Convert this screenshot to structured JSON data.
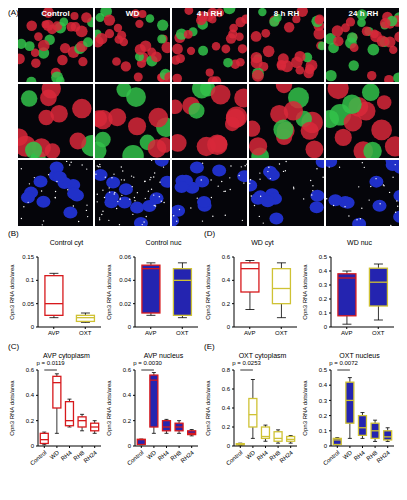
{
  "image_panel": {
    "label": "(A)",
    "columns": [
      "Control",
      "WD",
      "4 h RH",
      "8 h RH",
      "24 h RH"
    ]
  },
  "chart_data": [
    {
      "type": "box",
      "panel_label": "(B)",
      "title": "Control cyt",
      "y_label": "Opn3 RNA dots/area",
      "categories": [
        "AVP",
        "OXT"
      ],
      "boxes": [
        {
          "min": 0.02,
          "q1": 0.025,
          "median": 0.05,
          "q3": 0.11,
          "max": 0.115
        },
        {
          "min": 0.01,
          "q1": 0.012,
          "median": 0.02,
          "q3": 0.025,
          "max": 0.03
        }
      ],
      "colors": [
        "#d7191c",
        "#cfc234"
      ],
      "color": "#ffffff",
      "ylim": [
        0,
        0.15
      ],
      "yticks": [
        0,
        0.05,
        0.1,
        0.15
      ]
    },
    {
      "type": "box",
      "title": "Control nuc",
      "y_label": "Opn3 RNA dots/area",
      "categories": [
        "AVP",
        "OXT"
      ],
      "boxes": [
        {
          "min": 0.01,
          "q1": 0.012,
          "median": 0.05,
          "q3": 0.053,
          "max": 0.055
        },
        {
          "min": 0.008,
          "q1": 0.01,
          "median": 0.04,
          "q3": 0.05,
          "max": 0.055
        }
      ],
      "colors": [
        "#d7191c",
        "#cfc234"
      ],
      "color": "#2424b0",
      "ylim": [
        0,
        0.06
      ],
      "yticks": [
        0,
        0.02,
        0.04,
        0.06
      ]
    },
    {
      "type": "box",
      "panel_label": "(D)",
      "title": "WD cyt",
      "y_label": "Opn3 RNA dots/area",
      "categories": [
        "AVP",
        "OXT"
      ],
      "boxes": [
        {
          "min": 0.15,
          "q1": 0.3,
          "median": 0.5,
          "q3": 0.55,
          "max": 0.57
        },
        {
          "min": 0.08,
          "q1": 0.2,
          "median": 0.33,
          "q3": 0.5,
          "max": 0.55
        }
      ],
      "colors": [
        "#d7191c",
        "#cfc234"
      ],
      "color": "#ffffff",
      "ylim": [
        0,
        0.6
      ],
      "yticks": [
        0,
        0.2,
        0.4,
        0.6
      ]
    },
    {
      "type": "box",
      "title": "WD nuc",
      "y_label": "Opn3 RNA dots/area",
      "categories": [
        "AVP",
        "OXT"
      ],
      "boxes": [
        {
          "min": 0.02,
          "q1": 0.08,
          "median": 0.35,
          "q3": 0.38,
          "max": 0.4
        },
        {
          "min": 0.05,
          "q1": 0.15,
          "median": 0.32,
          "q3": 0.42,
          "max": 0.45
        }
      ],
      "colors": [
        "#d7191c",
        "#cfc234"
      ],
      "color": "#2424b0",
      "ylim": [
        0,
        0.5
      ],
      "yticks": [
        0,
        0.1,
        0.2,
        0.3,
        0.4,
        0.5
      ]
    },
    {
      "type": "box",
      "panel_label": "(C)",
      "title": "AVP cytoplasm",
      "y_label": "Opn3 RNA dots/area",
      "categories": [
        "Control",
        "WD",
        "RH4",
        "RH8",
        "RH24"
      ],
      "boxes": [
        {
          "min": 0.01,
          "q1": 0.02,
          "median": 0.05,
          "q3": 0.1,
          "max": 0.11
        },
        {
          "min": 0.1,
          "q1": 0.3,
          "median": 0.5,
          "q3": 0.55,
          "max": 0.57
        },
        {
          "min": 0.15,
          "q1": 0.16,
          "median": 0.2,
          "q3": 0.35,
          "max": 0.37
        },
        {
          "min": 0.12,
          "q1": 0.15,
          "median": 0.2,
          "q3": 0.23,
          "max": 0.25
        },
        {
          "min": 0.1,
          "q1": 0.12,
          "median": 0.15,
          "q3": 0.18,
          "max": 0.2
        }
      ],
      "colors": [
        "#d7191c",
        "#d7191c",
        "#d7191c",
        "#d7191c",
        "#d7191c"
      ],
      "color": "#ffffff",
      "ylim": [
        0,
        0.6
      ],
      "yticks": [
        0,
        0.2,
        0.4,
        0.6
      ],
      "annotations": [
        {
          "text": "p = 0.0119",
          "from": 0,
          "to": 1
        }
      ]
    },
    {
      "type": "box",
      "title": "AVP nucleus",
      "y_label": "Opn3 RNA dots/area",
      "categories": [
        "Control",
        "WD",
        "RH4",
        "RH8",
        "RH24"
      ],
      "boxes": [
        {
          "min": 0.01,
          "q1": 0.012,
          "median": 0.05,
          "q3": 0.053,
          "max": 0.055
        },
        {
          "min": 0.1,
          "q1": 0.15,
          "median": 0.52,
          "q3": 0.56,
          "max": 0.58
        },
        {
          "min": 0.1,
          "q1": 0.12,
          "median": 0.15,
          "q3": 0.2,
          "max": 0.21
        },
        {
          "min": 0.1,
          "q1": 0.12,
          "median": 0.15,
          "q3": 0.18,
          "max": 0.2
        },
        {
          "min": 0.08,
          "q1": 0.09,
          "median": 0.1,
          "q3": 0.12,
          "max": 0.13
        }
      ],
      "colors": [
        "#d7191c",
        "#d7191c",
        "#d7191c",
        "#d7191c",
        "#d7191c"
      ],
      "color": "#2424b0",
      "ylim": [
        0,
        0.6
      ],
      "yticks": [
        0,
        0.2,
        0.4,
        0.6
      ],
      "annotations": [
        {
          "text": "p = 0.0030",
          "from": 0,
          "to": 1
        }
      ]
    },
    {
      "type": "box",
      "panel_label": "(E)",
      "title": "OXT cytoplasm",
      "y_label": "Opn3 RNA dots/area",
      "categories": [
        "Control",
        "WD",
        "RH4",
        "RH8",
        "RH24"
      ],
      "boxes": [
        {
          "min": 0.01,
          "q1": 0.012,
          "median": 0.02,
          "q3": 0.025,
          "max": 0.03
        },
        {
          "min": 0.08,
          "q1": 0.2,
          "median": 0.33,
          "q3": 0.5,
          "max": 0.7
        },
        {
          "min": 0.05,
          "q1": 0.08,
          "median": 0.1,
          "q3": 0.2,
          "max": 0.22
        },
        {
          "min": 0.03,
          "q1": 0.05,
          "median": 0.08,
          "q3": 0.15,
          "max": 0.17
        },
        {
          "min": 0.03,
          "q1": 0.05,
          "median": 0.07,
          "q3": 0.1,
          "max": 0.11
        }
      ],
      "colors": [
        "#cfc234",
        "#cfc234",
        "#cfc234",
        "#cfc234",
        "#cfc234"
      ],
      "color": "#ffffff",
      "ylim": [
        0,
        0.8
      ],
      "yticks": [
        0,
        0.2,
        0.4,
        0.6,
        0.8
      ],
      "annotations": [
        {
          "text": "p = 0.0253",
          "from": 0,
          "to": 1
        }
      ]
    },
    {
      "type": "box",
      "title": "OXT nucleus",
      "y_label": "Opn3 RNA dots/area",
      "categories": [
        "Control",
        "WD",
        "RH4",
        "RH8",
        "RH24"
      ],
      "boxes": [
        {
          "min": 0.008,
          "q1": 0.01,
          "median": 0.04,
          "q3": 0.05,
          "max": 0.055
        },
        {
          "min": 0.05,
          "q1": 0.15,
          "median": 0.3,
          "q3": 0.42,
          "max": 0.45
        },
        {
          "min": 0.05,
          "q1": 0.07,
          "median": 0.12,
          "q3": 0.2,
          "max": 0.22
        },
        {
          "min": 0.03,
          "q1": 0.05,
          "median": 0.1,
          "q3": 0.15,
          "max": 0.17
        },
        {
          "min": 0.03,
          "q1": 0.04,
          "median": 0.06,
          "q3": 0.1,
          "max": 0.12
        }
      ],
      "colors": [
        "#cfc234",
        "#cfc234",
        "#cfc234",
        "#cfc234",
        "#cfc234"
      ],
      "color": "#2424b0",
      "ylim": [
        0,
        0.5
      ],
      "yticks": [
        0,
        0.1,
        0.2,
        0.3,
        0.4,
        0.5
      ],
      "annotations": [
        {
          "text": "p = 0.0072",
          "from": 0,
          "to": 1
        }
      ]
    }
  ]
}
